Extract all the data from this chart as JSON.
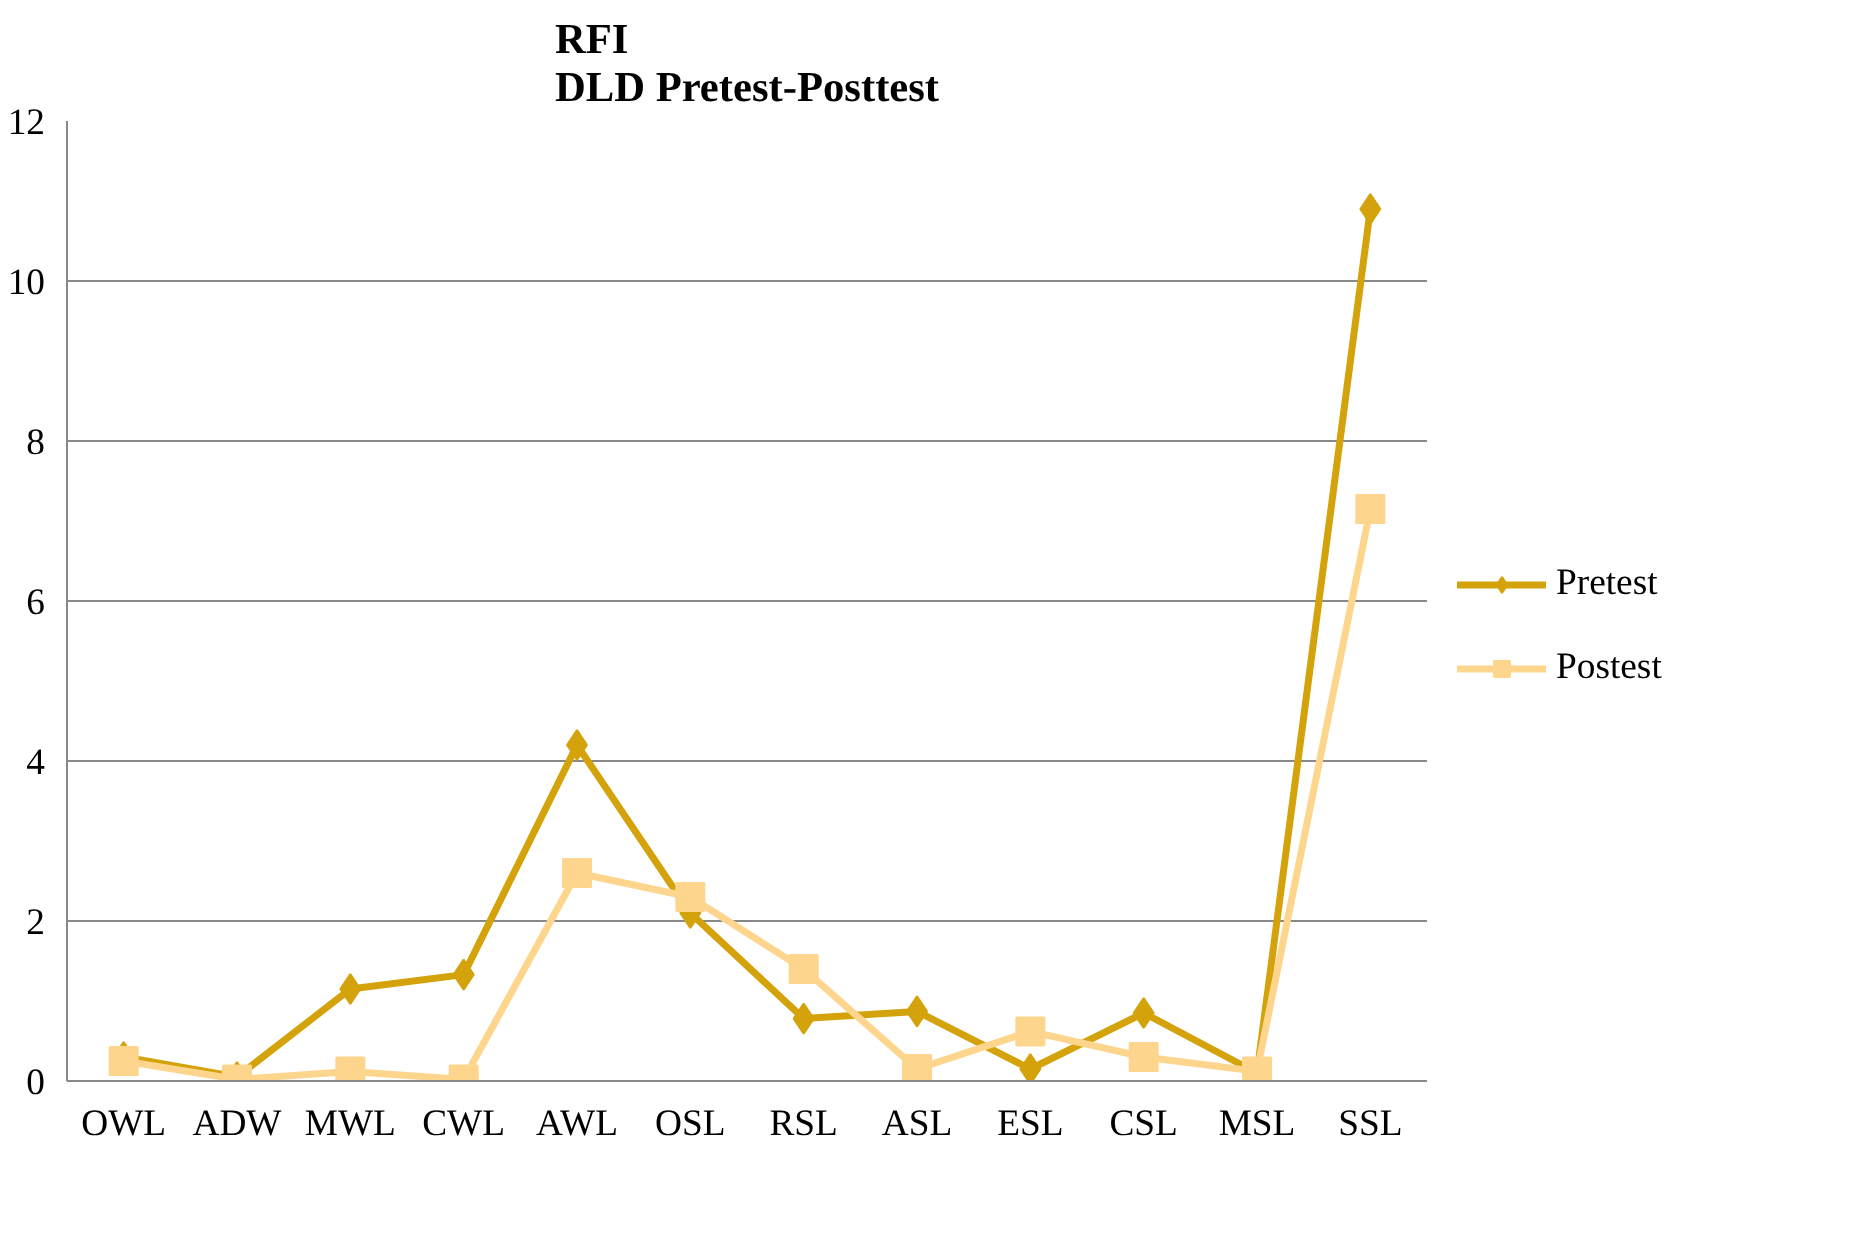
{
  "chart_data": {
    "type": "line",
    "title": "RFI\nDLD Pretest-Posttest",
    "categories": [
      "OWL",
      "ADW",
      "MWL",
      "CWL",
      "AWL",
      "OSL",
      "RSL",
      "ASL",
      "ESL",
      "CSL",
      "MSL",
      "SSL"
    ],
    "series": [
      {
        "name": "Pretest",
        "color": "#d4a20a",
        "marker": "diamond",
        "values": [
          0.3,
          0.05,
          1.15,
          1.33,
          4.2,
          2.1,
          0.78,
          0.87,
          0.15,
          0.85,
          0.1,
          10.9
        ]
      },
      {
        "name": "Postest",
        "color": "#fdd58c",
        "marker": "square",
        "values": [
          0.25,
          0.02,
          0.12,
          0.02,
          2.6,
          2.3,
          1.4,
          0.15,
          0.62,
          0.3,
          0.12,
          7.15
        ]
      }
    ],
    "ylim": [
      0,
      12
    ],
    "yticks": [
      0,
      2,
      4,
      6,
      8,
      10,
      12
    ],
    "grid": "y",
    "legend": "right",
    "line_style": "solid"
  }
}
